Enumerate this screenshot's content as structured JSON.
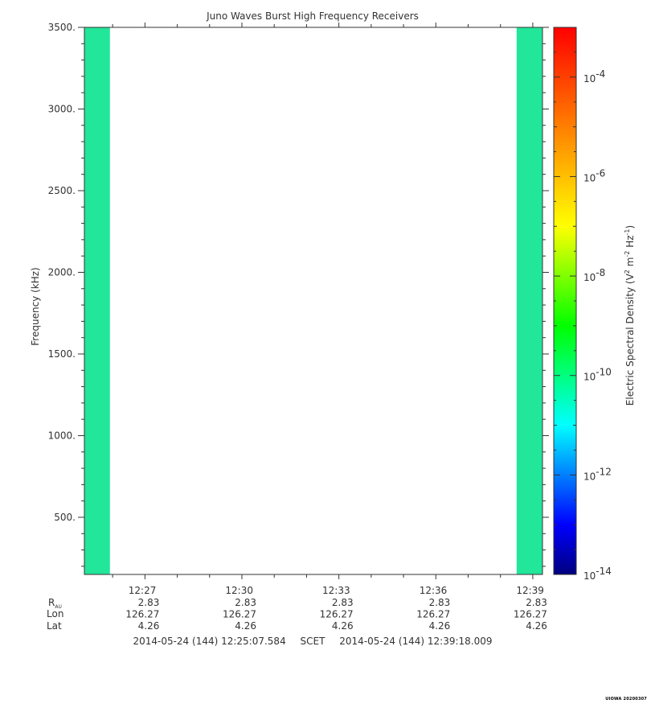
{
  "chart_data": {
    "type": "heatmap",
    "title": "Juno Waves Burst High Frequency Receivers",
    "ylabel": "Frequency (kHz)",
    "ylim": [
      150,
      3500
    ],
    "yticks": [
      500,
      1000,
      1500,
      2000,
      2500,
      3000,
      3500
    ],
    "ytick_labels": [
      "500.",
      "1000.",
      "1500.",
      "2000.",
      "2500.",
      "3000.",
      "3500."
    ],
    "xlim": [
      "12:25:07.584",
      "12:39:18.009"
    ],
    "xticks": [
      "12:27",
      "12:30",
      "12:33",
      "12:36",
      "12:39"
    ],
    "ephemeris": {
      "rows": [
        {
          "label": "R",
          "label_sub": "AU",
          "values": [
            "2.83",
            "2.83",
            "2.83",
            "2.83",
            "2.83"
          ]
        },
        {
          "label": "Lon",
          "values": [
            "126.27",
            "126.27",
            "126.27",
            "126.27",
            "126.27"
          ]
        },
        {
          "label": "Lat",
          "values": [
            "4.26",
            "4.26",
            "4.26",
            "4.26",
            "4.26"
          ]
        }
      ]
    },
    "time_range": {
      "start": "2014-05-24 (144) 12:25:07.584",
      "frame": "SCET",
      "end": "2014-05-24 (144) 12:39:18.009"
    },
    "data_blocks": [
      {
        "start": "12:25:07.584",
        "end": "12:25:55",
        "log10_density_approx": -10.3
      },
      {
        "start": "12:38:30",
        "end": "12:39:18.009",
        "log10_density_approx": -10.3
      }
    ],
    "colorbar": {
      "label": "Electric Spectral Density (V",
      "label_parts": [
        "Electric Spectral Density (V",
        "2",
        " m",
        "-2",
        " Hz",
        "-1",
        ")"
      ],
      "scale": "log",
      "range_exponent": [
        -14,
        -3
      ],
      "tick_base": "10",
      "tick_exponents": [
        "-4",
        "-6",
        "-8",
        "-10",
        "-12",
        "-14"
      ],
      "colormap": [
        "#00007f",
        "#0000ff",
        "#007fff",
        "#00ffff",
        "#00ff7f",
        "#00ff00",
        "#7fff00",
        "#ffff00",
        "#ffbf00",
        "#ff7f00",
        "#ff3f00",
        "#ff0000"
      ],
      "data_color": "#22e69a"
    },
    "credit": "UIOWA 20200307"
  }
}
